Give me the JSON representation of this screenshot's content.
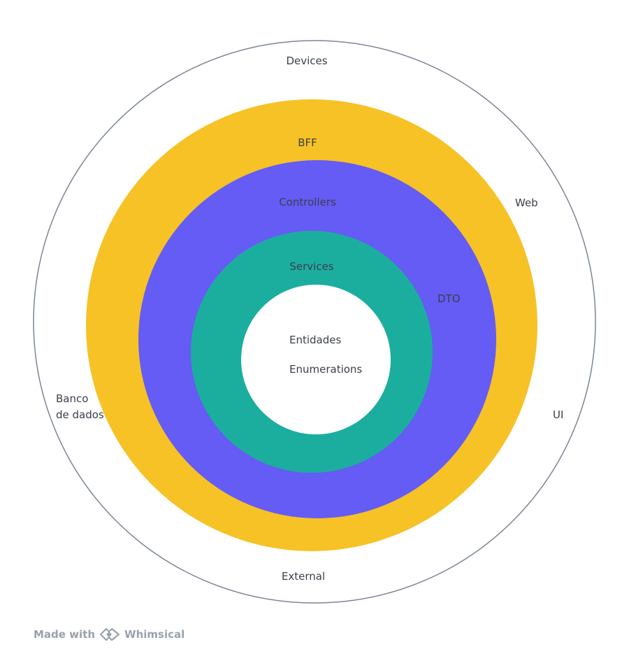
{
  "diagram": {
    "rings": {
      "outer": {
        "labels": {
          "top": "Devices",
          "bottom": "External",
          "left_line1": "Banco",
          "left_line2": "de dados",
          "right": "UI",
          "upper_right": "Web"
        },
        "stroke": "#7b8593",
        "fill": "#ffffff"
      },
      "bff": {
        "label": "BFF",
        "color": "#f6c226"
      },
      "controllers": {
        "label": "Controllers",
        "side_label": "DTO",
        "color": "#655bf5"
      },
      "services": {
        "label": "Services",
        "color": "#1bae9f"
      },
      "core": {
        "label_1": "Entidades",
        "label_2": "Enumerations",
        "color": "#ffffff"
      }
    }
  },
  "footer": {
    "made_with": "Made with",
    "brand": "Whimsical",
    "logo_icon": "whimsical-logo-icon",
    "color": "#9aa1ad"
  }
}
